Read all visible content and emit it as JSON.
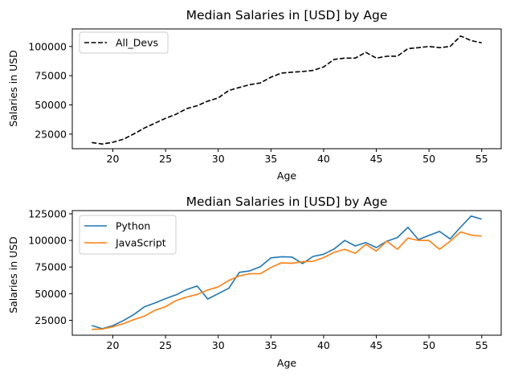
{
  "chart_data": [
    {
      "type": "line",
      "title": "Median Salaries in [USD] by Age",
      "xlabel": "Age",
      "ylabel": "Salaries in USD",
      "xlim": [
        16.15,
        56.85
      ],
      "ylim": [
        12500,
        115000
      ],
      "xticks": [
        20,
        25,
        30,
        35,
        40,
        45,
        50,
        55
      ],
      "yticks": [
        25000,
        50000,
        75000,
        100000
      ],
      "grid": false,
      "legend": "top-left",
      "x": [
        18,
        19,
        20,
        21,
        22,
        23,
        24,
        25,
        26,
        27,
        28,
        29,
        30,
        31,
        32,
        33,
        34,
        35,
        36,
        37,
        38,
        39,
        40,
        41,
        42,
        43,
        44,
        45,
        46,
        47,
        48,
        49,
        50,
        51,
        52,
        53,
        54,
        55
      ],
      "series": [
        {
          "name": "All_Devs",
          "color": "#000000",
          "dashed": true,
          "values": [
            17784,
            16500,
            18012,
            20628,
            25206,
            30252,
            34368,
            38496,
            42000,
            46752,
            49320,
            53200,
            56000,
            62316,
            64928,
            67317,
            68748,
            73752,
            77232,
            78000,
            78508,
            79536,
            82488,
            88935,
            90000,
            90056,
            95000,
            90000,
            91633,
            91660,
            98150,
            98964,
            100000,
            98988,
            100000,
            108923,
            105000,
            103117
          ]
        }
      ]
    },
    {
      "type": "line",
      "title": "Median Salaries in [USD] by Age",
      "xlabel": "Age",
      "ylabel": "Salaries in USD",
      "xlim": [
        16.15,
        56.85
      ],
      "ylim": [
        11000,
        128000
      ],
      "xticks": [
        20,
        25,
        30,
        35,
        40,
        45,
        50,
        55
      ],
      "yticks": [
        25000,
        50000,
        75000,
        100000,
        125000
      ],
      "grid": false,
      "legend": "top-left",
      "x": [
        18,
        19,
        20,
        21,
        22,
        23,
        24,
        25,
        26,
        27,
        28,
        29,
        30,
        31,
        32,
        33,
        34,
        35,
        36,
        37,
        38,
        39,
        40,
        41,
        42,
        43,
        44,
        45,
        46,
        47,
        48,
        49,
        50,
        51,
        52,
        53,
        54,
        55
      ],
      "series": [
        {
          "name": "Python",
          "color": "#1f77b4",
          "values": [
            20046,
            17100,
            20000,
            24744,
            30500,
            37732,
            41247,
            45372,
            48876,
            53850,
            57287,
            45000,
            50000,
            55000,
            70000,
            71496,
            75370,
            83640,
            84666,
            84392,
            78254,
            85000,
            87038,
            91991,
            100000,
            94796,
            97962,
            93302,
            99240,
            102736,
            112285,
            100771,
            104708,
            108423,
            101407,
            112542,
            122870,
            120000
          ]
        },
        {
          "name": "JavaScript",
          "color": "#ff7f0e",
          "values": [
            16446,
            16791,
            18942,
            21780,
            25704,
            29000,
            34372,
            37810,
            43515,
            46823,
            49293,
            53437,
            56373,
            62375,
            66674,
            68745,
            68746,
            74583,
            79000,
            78508,
            79996,
            80403,
            83820,
            88833,
            91660,
            87892,
            96243,
            90000,
            99313,
            91660,
            102264,
            100000,
            100000,
            91660,
            99240,
            108000,
            105000,
            104000
          ]
        }
      ]
    }
  ]
}
